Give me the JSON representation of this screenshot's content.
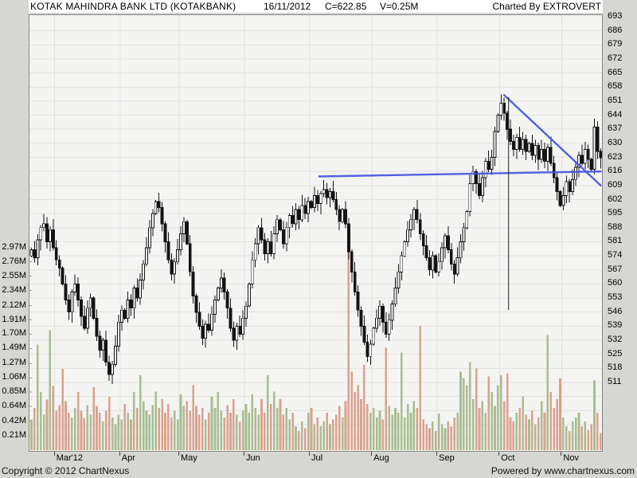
{
  "header": {
    "title": "KOTAK MAHINDRA BANK LTD (KOTAKBANK)",
    "date": "16/11/2012",
    "close": "C=622.85",
    "volume": "V=0.25M",
    "charted_by": "Charted By EXTROVERT"
  },
  "footer": {
    "copyright": "Copyright © 2012 ChartNexus",
    "powered_by": "Powered by www.chartnexus.com"
  },
  "chart_data": {
    "type": "candlestick_with_volume",
    "symbol": "KOTAKBANK",
    "last_close": 622.85,
    "last_volume_label": "0.25M",
    "price_axis": {
      "min": 511,
      "max": 693,
      "tick_step": 7,
      "ticks": [
        693,
        686,
        679,
        672,
        665,
        658,
        651,
        644,
        637,
        630,
        623,
        616,
        609,
        602,
        595,
        588,
        581,
        574,
        567,
        560,
        553,
        546,
        539,
        532,
        525,
        518,
        511
      ]
    },
    "volume_axis": {
      "ticks": [
        {
          "label": "2.97M",
          "value": 2.97
        },
        {
          "label": "2.76M",
          "value": 2.76
        },
        {
          "label": "2.55M",
          "value": 2.55
        },
        {
          "label": "2.34M",
          "value": 2.34
        },
        {
          "label": "2.12M",
          "value": 2.12
        },
        {
          "label": "1.91M",
          "value": 1.91
        },
        {
          "label": "1.70M",
          "value": 1.7
        },
        {
          "label": "1.49M",
          "value": 1.49
        },
        {
          "label": "1.27M",
          "value": 1.27
        },
        {
          "label": "1.06M",
          "value": 1.06
        },
        {
          "label": "0.85M",
          "value": 0.85
        },
        {
          "label": "0.64M",
          "value": 0.64
        },
        {
          "label": "0.42M",
          "value": 0.42
        },
        {
          "label": "0.21M",
          "value": 0.21
        }
      ]
    },
    "x_axis": {
      "months": [
        {
          "label": "Mar'12",
          "index": 8
        },
        {
          "label": "Apr",
          "index": 29
        },
        {
          "label": "May",
          "index": 48
        },
        {
          "label": "Jun",
          "index": 69
        },
        {
          "label": "Jul",
          "index": 90
        },
        {
          "label": "Aug",
          "index": 110
        },
        {
          "label": "Sep",
          "index": 131
        },
        {
          "label": "Oct",
          "index": 151
        },
        {
          "label": "Nov",
          "index": 171
        }
      ]
    },
    "candles": {
      "first_open": 574,
      "closes": [
        577,
        573,
        582,
        588,
        590,
        581,
        587,
        578,
        572,
        568,
        560,
        552,
        546,
        556,
        560,
        552,
        544,
        538,
        548,
        553,
        543,
        534,
        527,
        532,
        521,
        515,
        520,
        529,
        541,
        547,
        543,
        552,
        548,
        558,
        553,
        562,
        570,
        578,
        588,
        595,
        601,
        598,
        590,
        581,
        572,
        565,
        571,
        577,
        585,
        591,
        580,
        566,
        554,
        546,
        539,
        533,
        540,
        537,
        545,
        552,
        558,
        563,
        556,
        548,
        538,
        532,
        539,
        535,
        543,
        549,
        560,
        572,
        580,
        588,
        582,
        575,
        581,
        575,
        585,
        592,
        587,
        580,
        588,
        594,
        590,
        597,
        592,
        599,
        595,
        601,
        598,
        604,
        600,
        605,
        607,
        603,
        606,
        602,
        597,
        591,
        597,
        590,
        576,
        566,
        556,
        547,
        539,
        531,
        524,
        530,
        538,
        543,
        549,
        541,
        535,
        542,
        550,
        558,
        566,
        574,
        581,
        587,
        592,
        597,
        592,
        585,
        579,
        573,
        567,
        574,
        566,
        571,
        578,
        584,
        577,
        570,
        565,
        573,
        581,
        588,
        596,
        610,
        616,
        610,
        604,
        613,
        621,
        617,
        623,
        636,
        644,
        650,
        645,
        637,
        631,
        627,
        633,
        627,
        632,
        626,
        630,
        624,
        629,
        622,
        627,
        621,
        628,
        620,
        613,
        606,
        599,
        604,
        611,
        606,
        612,
        618,
        624,
        620,
        627,
        622,
        617,
        638,
        626,
        622.85
      ]
    },
    "volumes_millions": [
      0.45,
      0.62,
      1.55,
      0.85,
      0.52,
      0.74,
      1.76,
      0.94,
      0.58,
      0.66,
      1.19,
      0.72,
      0.55,
      0.48,
      0.62,
      0.85,
      0.58,
      0.47,
      0.66,
      0.52,
      0.92,
      0.65,
      0.55,
      0.42,
      0.58,
      0.78,
      0.48,
      0.38,
      0.52,
      0.45,
      0.68,
      0.55,
      0.45,
      0.85,
      0.62,
      1.1,
      0.72,
      0.58,
      0.52,
      0.66,
      0.86,
      0.62,
      0.75,
      0.55,
      0.68,
      0.48,
      0.58,
      0.45,
      0.82,
      0.65,
      0.72,
      0.58,
      0.95,
      0.65,
      0.52,
      0.62,
      0.45,
      0.55,
      0.78,
      0.62,
      0.85,
      0.58,
      0.48,
      0.66,
      0.55,
      0.75,
      0.52,
      0.42,
      0.58,
      0.68,
      0.55,
      0.82,
      0.62,
      0.52,
      0.75,
      0.55,
      1.1,
      0.68,
      0.86,
      0.62,
      0.75,
      0.52,
      0.62,
      0.45,
      0.55,
      0.35,
      0.28,
      0.42,
      0.32,
      0.55,
      0.62,
      0.38,
      0.48,
      0.35,
      0.42,
      0.55,
      0.38,
      0.45,
      0.52,
      0.65,
      0.48,
      0.72,
      2.91,
      1.15,
      0.85,
      0.95,
      0.75,
      1.25,
      0.68,
      0.55,
      0.62,
      0.48,
      0.58,
      0.45,
      1.5,
      0.65,
      0.52,
      0.62,
      0.55,
      1.43,
      0.48,
      0.68,
      0.55,
      0.72,
      0.62,
      1.82,
      0.45,
      0.38,
      0.32,
      0.42,
      0.28,
      0.54,
      0.38,
      0.32,
      0.42,
      0.35,
      0.48,
      0.55,
      1.15,
      1.06,
      0.95,
      1.29,
      0.75,
      1.2,
      0.62,
      0.72,
      0.55,
      1.08,
      0.85,
      0.65,
      0.95,
      1.1,
      0.72,
      1.12,
      0.48,
      0.42,
      0.55,
      0.62,
      0.79,
      0.52,
      0.45,
      0.58,
      0.38,
      0.48,
      0.72,
      0.55,
      1.69,
      0.85,
      0.62,
      0.75,
      1.05,
      0.48,
      0.35,
      0.28,
      0.42,
      0.48,
      0.55,
      0.35,
      0.42,
      0.3,
      0.38,
      1.02,
      0.55,
      0.25
    ],
    "annotations": [
      {
        "type": "trendline",
        "name": "horizontal-resistance-line",
        "from": {
          "index": 92.5,
          "price": 613.5
        },
        "to": {
          "index": 184.5,
          "price": 616
        }
      },
      {
        "type": "trendline",
        "name": "descending-trendline",
        "from": {
          "index": 152,
          "price": 654
        },
        "to": {
          "index": 183.3,
          "price": 609
        }
      },
      {
        "type": "vertical-line",
        "name": "vertical-marker-line",
        "index": 153.4,
        "from_price": 653,
        "to_price": 547
      }
    ],
    "colors": {
      "window_bg": "#d6d6d2",
      "plot_bg": "#f4f4f3",
      "grid": "#e4e2e0",
      "frame": "#868686",
      "candle_down": "#141414",
      "candle_up_fill": "#fbfbfb",
      "candle_stroke": "#141414",
      "volume_up": "#a8bd90",
      "volume_down": "#d9a28e",
      "trendline": "#4250e0",
      "vertical_line": "#222222"
    }
  }
}
